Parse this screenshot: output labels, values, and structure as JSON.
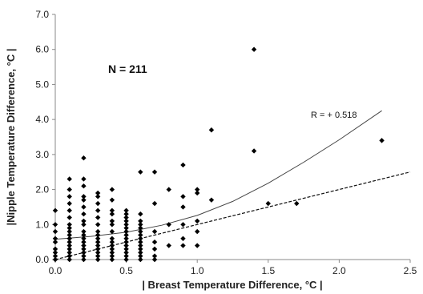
{
  "chart_data": {
    "type": "scatter",
    "xlabel": "| Breast Temperature Difference, °C |",
    "ylabel": "|Nipple Temperature Difference, °C |",
    "xlim": [
      0.0,
      2.5
    ],
    "ylim": [
      0.0,
      7.0
    ],
    "xticks": [
      "0.0",
      "0.5",
      "1.0",
      "1.5",
      "2.0",
      "2.5"
    ],
    "yticks": [
      "0.0",
      "1.0",
      "2.0",
      "3.0",
      "4.0",
      "5.0",
      "6.0",
      "7.0"
    ],
    "grid": false,
    "annotations": {
      "n_label": "N = 211",
      "r_label": "R =  + 0.518"
    },
    "points": [
      {
        "x": 0.0,
        "y": 0.0
      },
      {
        "x": 0.0,
        "y": 0.1
      },
      {
        "x": 0.0,
        "y": 0.2
      },
      {
        "x": 0.0,
        "y": 0.3
      },
      {
        "x": 0.0,
        "y": 0.5
      },
      {
        "x": 0.0,
        "y": 0.6
      },
      {
        "x": 0.0,
        "y": 0.8
      },
      {
        "x": 0.0,
        "y": 1.0
      },
      {
        "x": 0.0,
        "y": 1.4
      },
      {
        "x": 0.1,
        "y": 0.0
      },
      {
        "x": 0.1,
        "y": 0.1
      },
      {
        "x": 0.1,
        "y": 0.2
      },
      {
        "x": 0.1,
        "y": 0.3
      },
      {
        "x": 0.1,
        "y": 0.4
      },
      {
        "x": 0.1,
        "y": 0.5
      },
      {
        "x": 0.1,
        "y": 0.6
      },
      {
        "x": 0.1,
        "y": 0.7
      },
      {
        "x": 0.1,
        "y": 0.8
      },
      {
        "x": 0.1,
        "y": 0.9
      },
      {
        "x": 0.1,
        "y": 1.0
      },
      {
        "x": 0.1,
        "y": 1.2
      },
      {
        "x": 0.1,
        "y": 1.4
      },
      {
        "x": 0.1,
        "y": 1.6
      },
      {
        "x": 0.1,
        "y": 1.8
      },
      {
        "x": 0.1,
        "y": 2.0
      },
      {
        "x": 0.1,
        "y": 2.3
      },
      {
        "x": 0.2,
        "y": 0.0
      },
      {
        "x": 0.2,
        "y": 0.1
      },
      {
        "x": 0.2,
        "y": 0.2
      },
      {
        "x": 0.2,
        "y": 0.3
      },
      {
        "x": 0.2,
        "y": 0.4
      },
      {
        "x": 0.2,
        "y": 0.5
      },
      {
        "x": 0.2,
        "y": 0.6
      },
      {
        "x": 0.2,
        "y": 0.7
      },
      {
        "x": 0.2,
        "y": 0.8
      },
      {
        "x": 0.2,
        "y": 1.0
      },
      {
        "x": 0.2,
        "y": 1.1
      },
      {
        "x": 0.2,
        "y": 1.3
      },
      {
        "x": 0.2,
        "y": 1.5
      },
      {
        "x": 0.2,
        "y": 1.7
      },
      {
        "x": 0.2,
        "y": 1.8
      },
      {
        "x": 0.2,
        "y": 2.1
      },
      {
        "x": 0.2,
        "y": 2.3
      },
      {
        "x": 0.2,
        "y": 2.9
      },
      {
        "x": 0.3,
        "y": 0.0
      },
      {
        "x": 0.3,
        "y": 0.1
      },
      {
        "x": 0.3,
        "y": 0.2
      },
      {
        "x": 0.3,
        "y": 0.3
      },
      {
        "x": 0.3,
        "y": 0.4
      },
      {
        "x": 0.3,
        "y": 0.5
      },
      {
        "x": 0.3,
        "y": 0.6
      },
      {
        "x": 0.3,
        "y": 0.7
      },
      {
        "x": 0.3,
        "y": 0.8
      },
      {
        "x": 0.3,
        "y": 1.0
      },
      {
        "x": 0.3,
        "y": 1.2
      },
      {
        "x": 0.3,
        "y": 1.4
      },
      {
        "x": 0.3,
        "y": 1.6
      },
      {
        "x": 0.3,
        "y": 1.8
      },
      {
        "x": 0.3,
        "y": 1.9
      },
      {
        "x": 0.4,
        "y": 0.0
      },
      {
        "x": 0.4,
        "y": 0.1
      },
      {
        "x": 0.4,
        "y": 0.2
      },
      {
        "x": 0.4,
        "y": 0.3
      },
      {
        "x": 0.4,
        "y": 0.4
      },
      {
        "x": 0.4,
        "y": 0.5
      },
      {
        "x": 0.4,
        "y": 0.6
      },
      {
        "x": 0.4,
        "y": 0.8
      },
      {
        "x": 0.4,
        "y": 1.0
      },
      {
        "x": 0.4,
        "y": 1.1
      },
      {
        "x": 0.4,
        "y": 1.3
      },
      {
        "x": 0.4,
        "y": 1.4
      },
      {
        "x": 0.4,
        "y": 1.7
      },
      {
        "x": 0.4,
        "y": 2.0
      },
      {
        "x": 0.5,
        "y": 0.0
      },
      {
        "x": 0.5,
        "y": 0.1
      },
      {
        "x": 0.5,
        "y": 0.2
      },
      {
        "x": 0.5,
        "y": 0.3
      },
      {
        "x": 0.5,
        "y": 0.4
      },
      {
        "x": 0.5,
        "y": 0.5
      },
      {
        "x": 0.5,
        "y": 0.6
      },
      {
        "x": 0.5,
        "y": 0.7
      },
      {
        "x": 0.5,
        "y": 0.8
      },
      {
        "x": 0.5,
        "y": 0.9
      },
      {
        "x": 0.5,
        "y": 1.0
      },
      {
        "x": 0.5,
        "y": 1.1
      },
      {
        "x": 0.5,
        "y": 1.2
      },
      {
        "x": 0.5,
        "y": 1.3
      },
      {
        "x": 0.5,
        "y": 1.4
      },
      {
        "x": 0.6,
        "y": 0.0
      },
      {
        "x": 0.6,
        "y": 0.1
      },
      {
        "x": 0.6,
        "y": 0.2
      },
      {
        "x": 0.6,
        "y": 0.3
      },
      {
        "x": 0.6,
        "y": 0.4
      },
      {
        "x": 0.6,
        "y": 0.5
      },
      {
        "x": 0.6,
        "y": 0.6
      },
      {
        "x": 0.6,
        "y": 0.7
      },
      {
        "x": 0.6,
        "y": 0.8
      },
      {
        "x": 0.6,
        "y": 0.9
      },
      {
        "x": 0.6,
        "y": 1.0
      },
      {
        "x": 0.6,
        "y": 1.1
      },
      {
        "x": 0.6,
        "y": 1.3
      },
      {
        "x": 0.6,
        "y": 2.5
      },
      {
        "x": 0.7,
        "y": 0.0
      },
      {
        "x": 0.7,
        "y": 0.1
      },
      {
        "x": 0.7,
        "y": 0.3
      },
      {
        "x": 0.7,
        "y": 0.5
      },
      {
        "x": 0.7,
        "y": 0.8
      },
      {
        "x": 0.7,
        "y": 1.6
      },
      {
        "x": 0.7,
        "y": 2.5
      },
      {
        "x": 0.8,
        "y": 0.4
      },
      {
        "x": 0.8,
        "y": 1.0
      },
      {
        "x": 0.8,
        "y": 2.0
      },
      {
        "x": 0.9,
        "y": 0.4
      },
      {
        "x": 0.9,
        "y": 0.6
      },
      {
        "x": 0.9,
        "y": 1.0
      },
      {
        "x": 0.9,
        "y": 1.5
      },
      {
        "x": 0.9,
        "y": 1.8
      },
      {
        "x": 0.9,
        "y": 2.7
      },
      {
        "x": 1.0,
        "y": 0.4
      },
      {
        "x": 1.0,
        "y": 0.8
      },
      {
        "x": 1.0,
        "y": 1.1
      },
      {
        "x": 1.0,
        "y": 1.9
      },
      {
        "x": 1.0,
        "y": 2.0
      },
      {
        "x": 1.1,
        "y": 1.7
      },
      {
        "x": 1.1,
        "y": 3.7
      },
      {
        "x": 1.4,
        "y": 3.1
      },
      {
        "x": 1.4,
        "y": 6.0
      },
      {
        "x": 1.5,
        "y": 1.6
      },
      {
        "x": 1.7,
        "y": 1.6
      },
      {
        "x": 2.3,
        "y": 3.4
      }
    ],
    "exponential_fit": [
      {
        "x": 0.0,
        "y": 0.58
      },
      {
        "x": 0.25,
        "y": 0.66
      },
      {
        "x": 0.5,
        "y": 0.78
      },
      {
        "x": 0.75,
        "y": 0.98
      },
      {
        "x": 1.0,
        "y": 1.26
      },
      {
        "x": 1.25,
        "y": 1.66
      },
      {
        "x": 1.5,
        "y": 2.18
      },
      {
        "x": 1.75,
        "y": 2.78
      },
      {
        "x": 2.0,
        "y": 3.42
      },
      {
        "x": 2.3,
        "y": 4.25
      }
    ],
    "linear_fit": [
      {
        "x": 0.0,
        "y": 0.0
      },
      {
        "x": 2.5,
        "y": 2.5
      }
    ]
  }
}
